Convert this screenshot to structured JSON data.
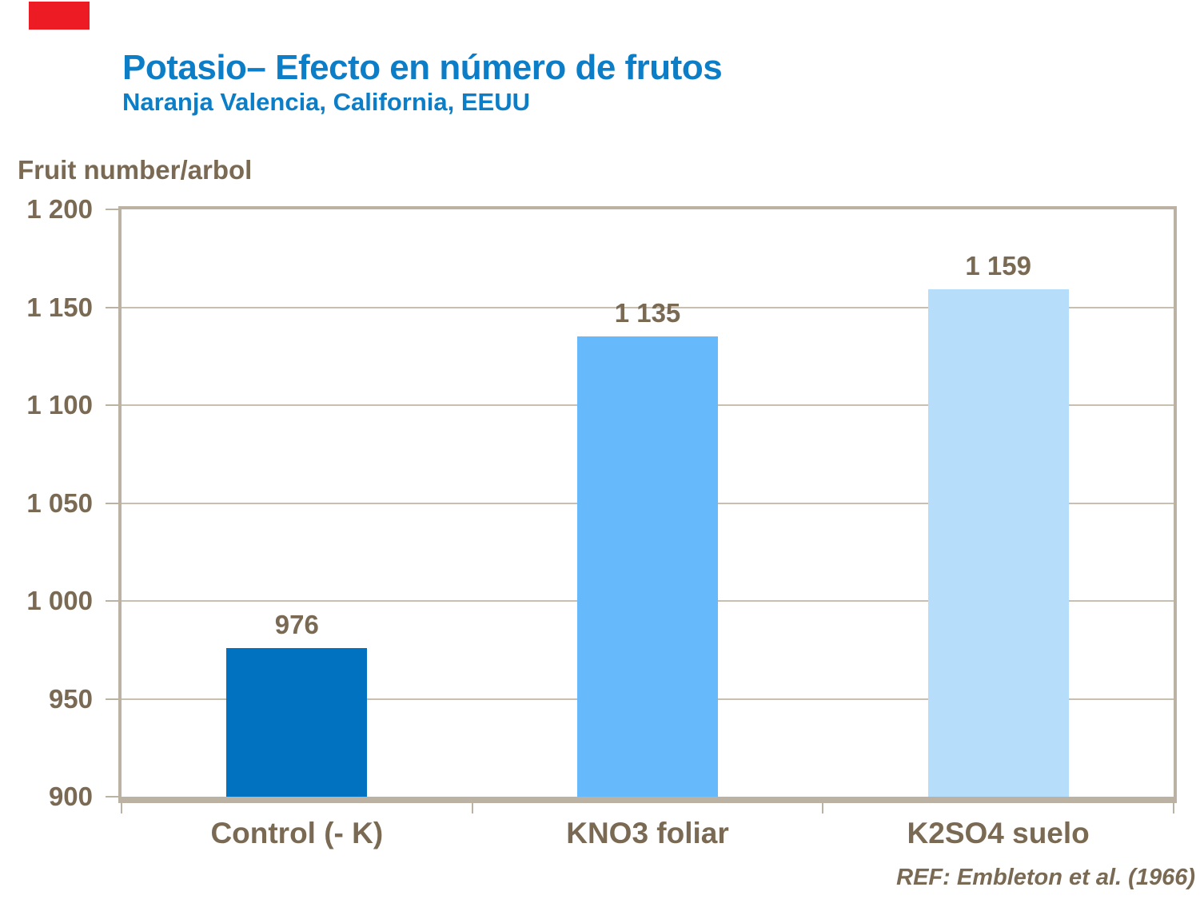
{
  "chart_data": {
    "type": "bar",
    "title": "Potasio– Efecto en número de frutos",
    "subtitle": "Naranja Valencia, California, EEUU",
    "ylabel": "Fruit number/arbol",
    "xlabel": "",
    "categories": [
      "Control (- K)",
      "KNO3 foliar",
      "K2SO4 suelo"
    ],
    "values": [
      976,
      1135,
      1159
    ],
    "value_labels": [
      "976",
      "1 135",
      "1 159"
    ],
    "ytick_labels": [
      "900",
      "950",
      "1 000",
      "1 050",
      "1 100",
      "1 150",
      "1 200"
    ],
    "ylim": [
      900,
      1200
    ],
    "ytick_step": 50,
    "grid": true,
    "legend": "none",
    "bar_colors": [
      "#0072C0",
      "#66BAFC",
      "#B6DEFB"
    ],
    "reference": "REF: Embleton et al. (1966)"
  },
  "colors": {
    "title_blue": "#0C7DC7",
    "text_brown": "#7A6A53",
    "frame_tan": "#BCB2A4",
    "gridline_tan": "#C9BFB1",
    "logo_red": "#ED1C24",
    "background": "#FFFFFF"
  }
}
